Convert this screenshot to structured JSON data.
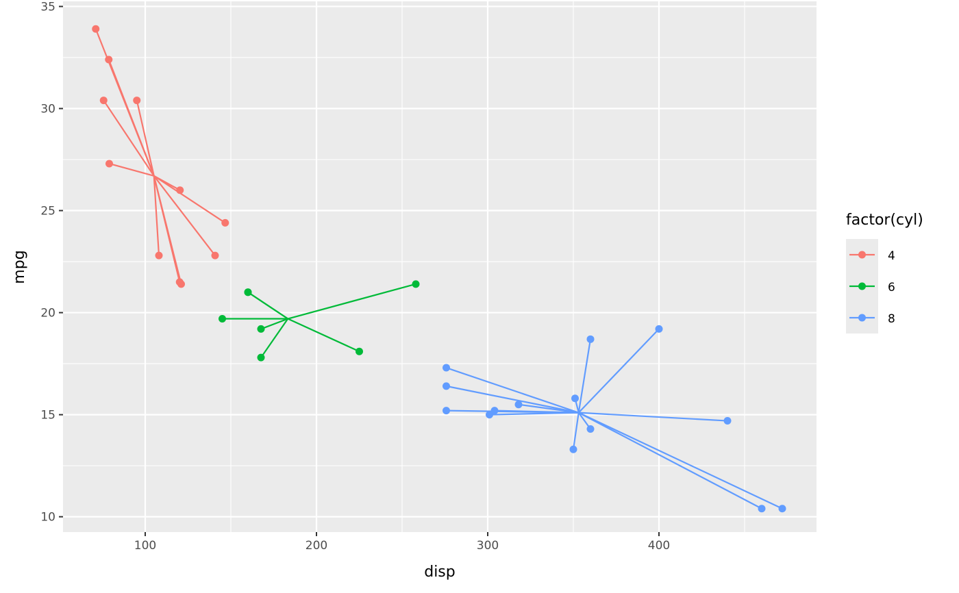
{
  "chart_data": {
    "type": "scatter",
    "subtype": "star segments from group centroid",
    "xlabel": "disp",
    "ylabel": "mpg",
    "xlim": [
      52,
      492
    ],
    "ylim": [
      9.25,
      35.25
    ],
    "x_ticks": [
      100,
      200,
      300,
      400
    ],
    "y_ticks": [
      10,
      15,
      20,
      25,
      30,
      35
    ],
    "grid": true,
    "background": "#EBEBEB",
    "legend": {
      "title": "factor(cyl)",
      "placement": "right",
      "entries": [
        "4",
        "6",
        "8"
      ]
    },
    "series": [
      {
        "name": "4",
        "color": "#F8766D",
        "centroid": [
          105.1,
          26.7
        ],
        "x": [
          108,
          146.7,
          140.8,
          78.7,
          75.7,
          71.1,
          120.1,
          79,
          120.3,
          95.1,
          121
        ],
        "y": [
          22.8,
          24.4,
          22.8,
          32.4,
          30.4,
          33.9,
          21.5,
          27.3,
          26.0,
          30.4,
          21.4
        ]
      },
      {
        "name": "6",
        "color": "#00BA38",
        "centroid": [
          183.3,
          19.7
        ],
        "x": [
          160,
          160,
          258,
          225,
          167.6,
          167.6,
          145
        ],
        "y": [
          21.0,
          21.0,
          21.4,
          18.1,
          19.2,
          17.8,
          19.7
        ]
      },
      {
        "name": "8",
        "color": "#619CFF",
        "centroid": [
          353.1,
          15.1
        ],
        "x": [
          360,
          360,
          275.8,
          275.8,
          275.8,
          472,
          460,
          440,
          318,
          304,
          350,
          400,
          351,
          301
        ],
        "y": [
          18.7,
          14.3,
          16.4,
          17.3,
          15.2,
          10.4,
          10.4,
          14.7,
          15.5,
          15.2,
          13.3,
          19.2,
          15.8,
          15.0
        ]
      }
    ]
  }
}
